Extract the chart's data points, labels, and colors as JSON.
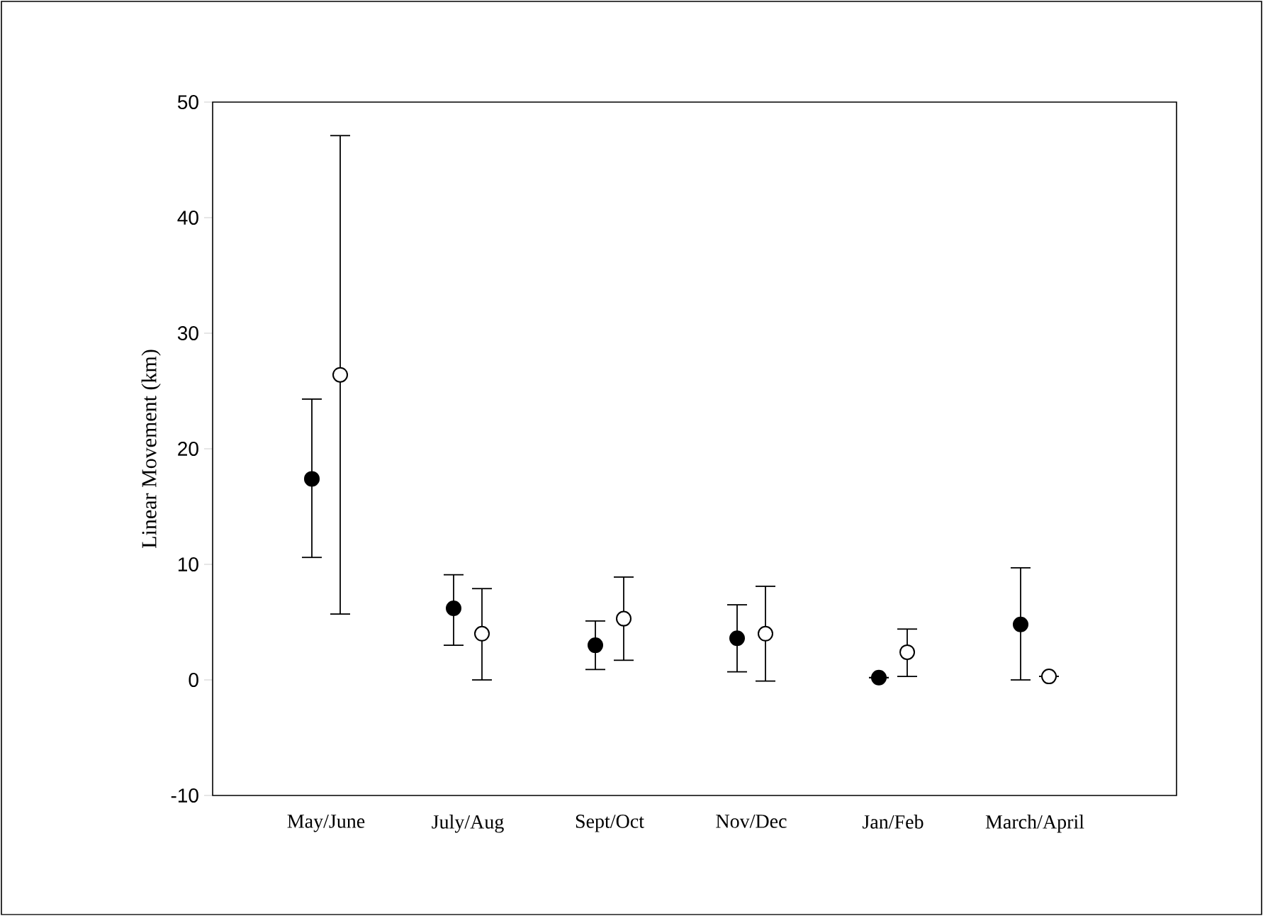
{
  "chart_data": {
    "type": "scatter",
    "ylabel": "Linear Movement (km)",
    "categories": [
      "May/June",
      "July/Aug",
      "Sept/Oct",
      "Nov/Dec",
      "Jan/Feb",
      "March/April"
    ],
    "series": [
      {
        "color": "#000000",
        "values": [
          17.4,
          6.2,
          3.0,
          3.6,
          0.2,
          4.8
        ],
        "errors": [
          [
            10.6,
            24.3
          ],
          [
            3.0,
            9.1
          ],
          [
            0.9,
            5.1
          ],
          [
            0.7,
            6.5
          ],
          null,
          [
            0.0,
            9.7
          ]
        ]
      },
      {
        "color": "#ffffff",
        "values": [
          26.4,
          4.0,
          5.3,
          4.0,
          2.4,
          0.3
        ],
        "errors": [
          [
            5.7,
            47.1
          ],
          [
            0.0,
            7.9
          ],
          [
            1.7,
            8.9
          ],
          [
            -0.1,
            8.1
          ],
          [
            0.3,
            4.4
          ],
          null
        ]
      }
    ],
    "ylim": [
      -10,
      50
    ],
    "yticks": [
      -10,
      0,
      10,
      20,
      30,
      40,
      50
    ],
    "marker": "circle"
  }
}
